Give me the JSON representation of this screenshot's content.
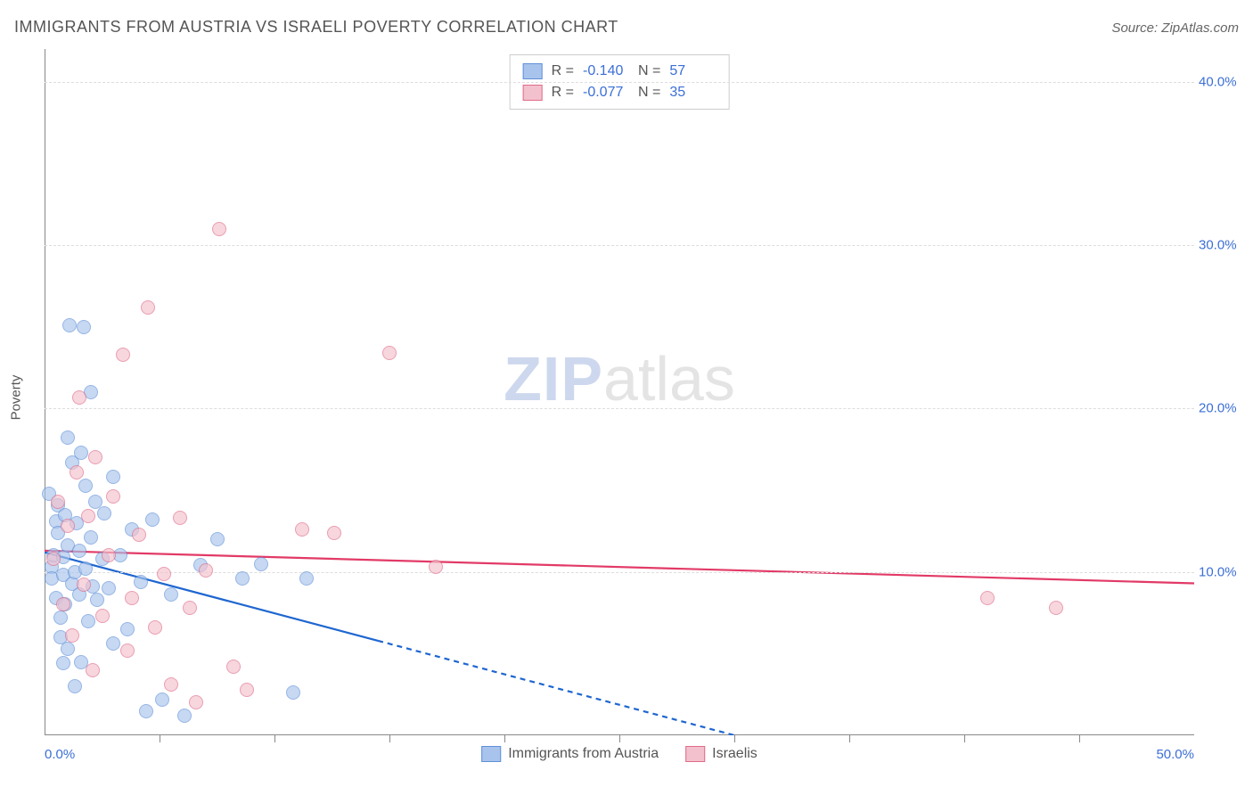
{
  "header": {
    "title": "IMMIGRANTS FROM AUSTRIA VS ISRAELI POVERTY CORRELATION CHART",
    "source": "Source: ZipAtlas.com"
  },
  "watermark": {
    "part1": "ZIP",
    "part2": "atlas"
  },
  "axes": {
    "y_title": "Poverty",
    "xlim": [
      0,
      50
    ],
    "ylim": [
      0,
      42
    ],
    "yticks": [
      {
        "v": 10,
        "label": "10.0%"
      },
      {
        "v": 20,
        "label": "20.0%"
      },
      {
        "v": 30,
        "label": "30.0%"
      },
      {
        "v": 40,
        "label": "40.0%"
      }
    ],
    "xticks_minor": [
      5,
      10,
      15,
      20,
      25,
      30,
      35,
      40,
      45
    ],
    "xlabels": [
      {
        "v": 0,
        "label": "0.0%",
        "cls": "first"
      },
      {
        "v": 50,
        "label": "50.0%",
        "cls": "last"
      }
    ],
    "grid_color": "#dddddd",
    "frame_color": "#888888",
    "tick_label_color": "#3b6fd6",
    "axis_title_color": "#555555"
  },
  "series": [
    {
      "id": "austria",
      "legend_label": "Immigrants from Austria",
      "color_fill": "#a9c4ec",
      "color_stroke": "#5f8fd8",
      "marker_r": 8,
      "marker_opacity": 0.65,
      "trend": {
        "color": "#1e66d0",
        "width": 2.2,
        "x1": 0,
        "y1": 11.2,
        "x2": 30,
        "y2": 0,
        "dash_after_x": 14.5
      },
      "stats": {
        "R": "-0.140",
        "N": "57"
      },
      "points": [
        [
          0.2,
          14.8
        ],
        [
          0.3,
          10.3
        ],
        [
          0.3,
          9.6
        ],
        [
          0.4,
          11.0
        ],
        [
          0.5,
          13.1
        ],
        [
          0.5,
          8.4
        ],
        [
          0.6,
          14.1
        ],
        [
          0.6,
          12.4
        ],
        [
          0.7,
          7.2
        ],
        [
          0.7,
          6.0
        ],
        [
          0.8,
          10.9
        ],
        [
          0.8,
          9.8
        ],
        [
          0.8,
          4.4
        ],
        [
          0.9,
          13.5
        ],
        [
          0.9,
          8.0
        ],
        [
          1.0,
          18.2
        ],
        [
          1.0,
          11.6
        ],
        [
          1.0,
          5.3
        ],
        [
          1.1,
          25.1
        ],
        [
          1.2,
          16.7
        ],
        [
          1.2,
          9.3
        ],
        [
          1.3,
          10.0
        ],
        [
          1.3,
          3.0
        ],
        [
          1.4,
          13.0
        ],
        [
          1.5,
          11.3
        ],
        [
          1.5,
          8.6
        ],
        [
          1.6,
          17.3
        ],
        [
          1.6,
          4.5
        ],
        [
          1.7,
          25.0
        ],
        [
          1.8,
          15.3
        ],
        [
          1.8,
          10.2
        ],
        [
          1.9,
          7.0
        ],
        [
          2.0,
          21.0
        ],
        [
          2.0,
          12.1
        ],
        [
          2.1,
          9.1
        ],
        [
          2.2,
          14.3
        ],
        [
          2.3,
          8.3
        ],
        [
          2.5,
          10.8
        ],
        [
          2.6,
          13.6
        ],
        [
          2.8,
          9.0
        ],
        [
          3.0,
          5.6
        ],
        [
          3.0,
          15.8
        ],
        [
          3.3,
          11.0
        ],
        [
          3.6,
          6.5
        ],
        [
          3.8,
          12.6
        ],
        [
          4.2,
          9.4
        ],
        [
          4.4,
          1.5
        ],
        [
          4.7,
          13.2
        ],
        [
          5.1,
          2.2
        ],
        [
          5.5,
          8.6
        ],
        [
          6.1,
          1.2
        ],
        [
          6.8,
          10.4
        ],
        [
          7.5,
          12.0
        ],
        [
          8.6,
          9.6
        ],
        [
          9.4,
          10.5
        ],
        [
          10.8,
          2.6
        ],
        [
          11.4,
          9.6
        ]
      ]
    },
    {
      "id": "israelis",
      "legend_label": "Israelis",
      "color_fill": "#f3c1cd",
      "color_stroke": "#e06a88",
      "marker_r": 8,
      "marker_opacity": 0.65,
      "trend": {
        "color": "#e23a66",
        "width": 2.2,
        "x1": 0,
        "y1": 11.3,
        "x2": 50,
        "y2": 9.3,
        "dash_after_x": 50
      },
      "stats": {
        "R": "-0.077",
        "N": "35"
      },
      "points": [
        [
          0.4,
          10.8
        ],
        [
          0.6,
          14.3
        ],
        [
          0.8,
          8.0
        ],
        [
          1.0,
          12.8
        ],
        [
          1.2,
          6.1
        ],
        [
          1.4,
          16.1
        ],
        [
          1.5,
          20.7
        ],
        [
          1.7,
          9.2
        ],
        [
          1.9,
          13.4
        ],
        [
          2.1,
          4.0
        ],
        [
          2.2,
          17.0
        ],
        [
          2.5,
          7.3
        ],
        [
          2.8,
          11.0
        ],
        [
          3.0,
          14.6
        ],
        [
          3.4,
          23.3
        ],
        [
          3.6,
          5.2
        ],
        [
          3.8,
          8.4
        ],
        [
          4.1,
          12.3
        ],
        [
          4.5,
          26.2
        ],
        [
          4.8,
          6.6
        ],
        [
          5.2,
          9.9
        ],
        [
          5.5,
          3.1
        ],
        [
          5.9,
          13.3
        ],
        [
          6.3,
          7.8
        ],
        [
          6.6,
          2.0
        ],
        [
          7.0,
          10.1
        ],
        [
          7.6,
          31.0
        ],
        [
          8.2,
          4.2
        ],
        [
          8.8,
          2.8
        ],
        [
          11.2,
          12.6
        ],
        [
          12.6,
          12.4
        ],
        [
          15.0,
          23.4
        ],
        [
          17.0,
          10.3
        ],
        [
          41.0,
          8.4
        ],
        [
          44.0,
          7.8
        ]
      ]
    }
  ],
  "stats_box": {
    "R_label": "R =",
    "N_label": "N ="
  },
  "colors": {
    "background": "#ffffff"
  }
}
